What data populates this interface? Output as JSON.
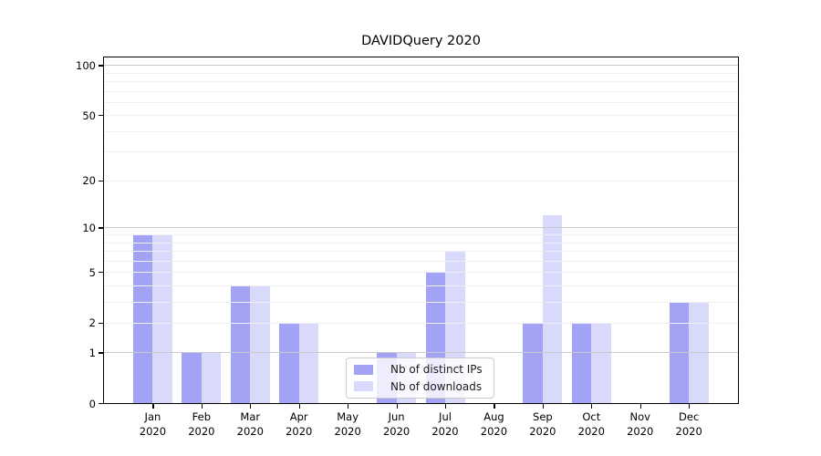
{
  "chart_data": {
    "type": "bar",
    "title": "DAVIDQuery 2020",
    "categories": [
      "Jan",
      "Feb",
      "Mar",
      "Apr",
      "May",
      "Jun",
      "Jul",
      "Aug",
      "Sep",
      "Oct",
      "Nov",
      "Dec"
    ],
    "year_label": "2020",
    "series": [
      {
        "name": "Nb of distinct IPs",
        "color": "rgba(102,102,238,0.60)",
        "values": [
          9,
          1,
          4,
          2,
          0,
          1,
          5,
          0,
          2,
          2,
          0,
          3
        ]
      },
      {
        "name": "Nb of downloads",
        "color": "rgba(102,102,238,0.25)",
        "values": [
          9,
          1,
          4,
          2,
          0,
          1,
          7,
          0,
          12,
          2,
          0,
          3
        ]
      }
    ],
    "yscale": "log1p",
    "ylim": [
      0,
      111
    ],
    "ytick_labels": [
      "0",
      "1",
      "2",
      "5",
      "10",
      "20",
      "50",
      "100"
    ],
    "yticks": [
      0,
      1,
      2,
      5,
      10,
      20,
      50,
      100
    ],
    "grid": true,
    "grid_minor_values": [
      2,
      3,
      4,
      5,
      6,
      7,
      8,
      9,
      20,
      30,
      40,
      50,
      60,
      70,
      80,
      90
    ],
    "grid_major_values": [
      1,
      10,
      100
    ],
    "legend_position": "lower center",
    "legend_labels": [
      "Nb of distinct IPs",
      "Nb of downloads"
    ]
  }
}
